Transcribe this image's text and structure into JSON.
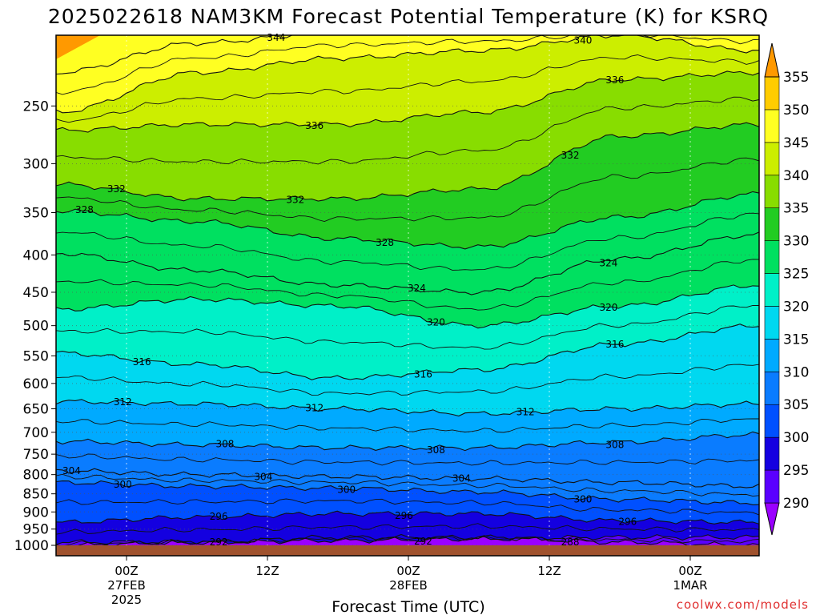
{
  "chart_data": {
    "type": "heatmap",
    "title": "2025022618 NAM3KM Forecast Potential Temperature (K) for KSRQ",
    "xlabel": "Forecast Time (UTC)",
    "ylabel": "",
    "y_scale": "log",
    "y_inverted": true,
    "ylim": [
      1000,
      200
    ],
    "y_ticks": [
      "250",
      "300",
      "350",
      "400",
      "450",
      "500",
      "550",
      "600",
      "650",
      "700",
      "750",
      "800",
      "850",
      "900",
      "950",
      "1000"
    ],
    "x_ticks": [
      {
        "label": "00Z",
        "sub1": "27FEB",
        "sub2": "2025"
      },
      {
        "label": "12Z",
        "sub1": "",
        "sub2": ""
      },
      {
        "label": "00Z",
        "sub1": "28FEB",
        "sub2": ""
      },
      {
        "label": "12Z",
        "sub1": "",
        "sub2": ""
      },
      {
        "label": "00Z",
        "sub1": "1MAR",
        "sub2": ""
      }
    ],
    "colorbar": {
      "levels": [
        "290",
        "295",
        "300",
        "305",
        "310",
        "315",
        "320",
        "325",
        "330",
        "335",
        "340",
        "345",
        "350",
        "355"
      ],
      "colors": [
        "#9a00ff",
        "#5a00ff",
        "#1400e0",
        "#0050ff",
        "#0a7cff",
        "#00aaff",
        "#00d8f0",
        "#00f0c8",
        "#00e060",
        "#22cc22",
        "#88dd00",
        "#ccee00",
        "#ffff22",
        "#ffcc00",
        "#ff9900"
      ]
    },
    "series": [
      {
        "name": "288",
        "pressure": [
          1000,
          990,
          975,
          975,
          990,
          1000
        ]
      },
      {
        "name": "292",
        "pressure": [
          990,
          990,
          985,
          980,
          975,
          975
        ]
      },
      {
        "name": "296",
        "pressure": [
          930,
          915,
          905,
          905,
          925,
          930
        ]
      },
      {
        "name": "300",
        "pressure": [
          820,
          830,
          835,
          845,
          865,
          875
        ]
      },
      {
        "name": "304",
        "pressure": [
          790,
          800,
          805,
          810,
          820,
          830
        ]
      },
      {
        "name": "308",
        "pressure": [
          720,
          728,
          735,
          735,
          722,
          705
        ]
      },
      {
        "name": "312",
        "pressure": [
          635,
          640,
          650,
          660,
          650,
          640
        ]
      },
      {
        "name": "316",
        "pressure": [
          545,
          565,
          590,
          575,
          530,
          500
        ]
      },
      {
        "name": "320",
        "pressure": [
          475,
          460,
          470,
          500,
          470,
          440
        ]
      },
      {
        "name": "324",
        "pressure": [
          398,
          420,
          440,
          450,
          405,
          375
        ]
      },
      {
        "name": "328",
        "pressure": [
          348,
          360,
          380,
          390,
          355,
          330
        ]
      },
      {
        "name": "332",
        "pressure": [
          320,
          335,
          335,
          325,
          275,
          265
        ]
      },
      {
        "name": "336",
        "pressure": [
          270,
          265,
          265,
          255,
          230,
          225
        ]
      },
      {
        "name": "340",
        "pressure": [
          255,
          225,
          215,
          210,
          200,
          210
        ]
      },
      {
        "name": "344",
        "pressure": [
          225,
          205,
          198,
          198,
          198,
          198
        ]
      }
    ],
    "contour_labels": [
      "344",
      "340",
      "336",
      "336",
      "332",
      "332",
      "332",
      "328",
      "328",
      "324",
      "324",
      "320",
      "320",
      "316",
      "316",
      "316",
      "312",
      "312",
      "312",
      "308",
      "308",
      "308",
      "304",
      "304",
      "304",
      "300",
      "300",
      "300",
      "296",
      "296",
      "296",
      "292",
      "292",
      "288"
    ],
    "credit": "coolwx.com/models"
  }
}
